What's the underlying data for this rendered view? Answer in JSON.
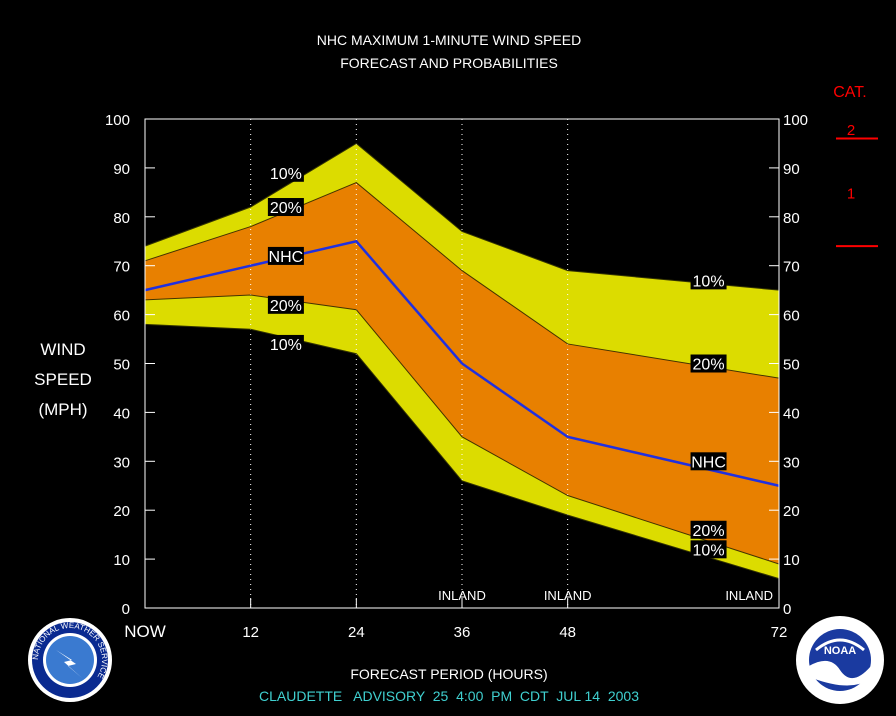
{
  "chart_data": {
    "type": "area",
    "title_line1": "NHC MAXIMUM 1-MINUTE WIND SPEED",
    "title_line2": "FORECAST AND PROBABILITIES",
    "xlabel": "FORECAST PERIOD (HOURS)",
    "ylabel_lines": [
      "WIND",
      "SPEED",
      "(MPH)"
    ],
    "advisory": "CLAUDETTE   ADVISORY  25  4:00  PM  CDT  JUL 14  2003",
    "xlim": [
      0,
      72
    ],
    "ylim": [
      0,
      100
    ],
    "y_ticks": [
      0,
      10,
      20,
      30,
      40,
      50,
      60,
      70,
      80,
      90,
      100
    ],
    "x_ticks": [
      {
        "value": 0,
        "label": "NOW"
      },
      {
        "value": 12,
        "label": "12"
      },
      {
        "value": 24,
        "label": "24"
      },
      {
        "value": 36,
        "label": "36"
      },
      {
        "value": 48,
        "label": "48"
      },
      {
        "value": 72,
        "label": "72"
      }
    ],
    "grid_x": [
      12,
      24,
      36,
      48
    ],
    "x": [
      0,
      12,
      24,
      36,
      48,
      72
    ],
    "upper_10": [
      74,
      82,
      95,
      77,
      69,
      65
    ],
    "upper_20": [
      71,
      78,
      87,
      69,
      54,
      47
    ],
    "nhc": [
      65,
      70,
      75,
      50,
      35,
      25
    ],
    "lower_20": [
      63,
      64,
      61,
      35,
      23,
      9
    ],
    "lower_10": [
      58,
      57,
      52,
      26,
      19,
      6
    ],
    "colors": {
      "band_10": "#dcdc00",
      "band_20": "#e88000",
      "nhc_line": "#2030e0",
      "plot_bg": "#000000",
      "category": "#ff0000",
      "advisory": "#40d0d0"
    },
    "inland_labels": [
      {
        "x": 36,
        "text": "INLAND"
      },
      {
        "x": 48,
        "text": "INLAND"
      },
      {
        "x": 72,
        "text": "INLAND"
      }
    ],
    "series_labels": [
      {
        "x": 16,
        "y": 89,
        "text": "10%"
      },
      {
        "x": 16,
        "y": 82,
        "text": "20%"
      },
      {
        "x": 16,
        "y": 72,
        "text": "NHC"
      },
      {
        "x": 16,
        "y": 62,
        "text": "20%"
      },
      {
        "x": 16,
        "y": 54,
        "text": "10%"
      },
      {
        "x": 64,
        "y": 67,
        "text": "10%"
      },
      {
        "x": 64,
        "y": 50,
        "text": "20%"
      },
      {
        "x": 64,
        "y": 30,
        "text": "NHC"
      },
      {
        "x": 64,
        "y": 16,
        "text": "20%"
      },
      {
        "x": 64,
        "y": 12,
        "text": "10%"
      }
    ],
    "category": {
      "heading": "CAT.",
      "thresholds": [
        74,
        96
      ],
      "labels": [
        {
          "y": 85,
          "text": "1"
        },
        {
          "y": 98,
          "text": "2"
        }
      ]
    }
  },
  "logos": {
    "left": {
      "name": "nws-logo",
      "text": "NATIONAL WEATHER SERVICE"
    },
    "right": {
      "name": "noaa-logo",
      "text": "NOAA"
    }
  }
}
